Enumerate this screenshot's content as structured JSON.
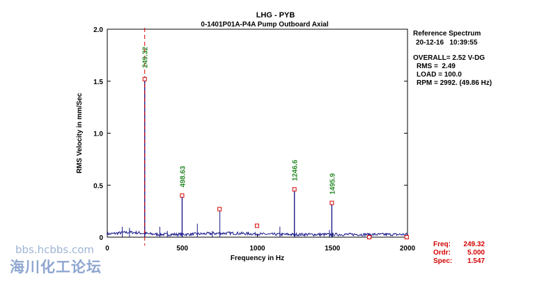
{
  "header": {
    "line1": "LHG  - PYB",
    "line2": "0-1401P01A-P4A   Pump Outboard Axial"
  },
  "info": {
    "title": "Reference Spectrum",
    "datetime": "20-12-16   10:39:55",
    "overall": "OVERALL= 2.52 V-DG",
    "rms": "RMS =  2.49",
    "load": "LOAD = 100.0",
    "rpm": "RPM = 2992. (49.86 Hz)"
  },
  "cursor": {
    "freq_label": "Freq:",
    "freq_value": "249.32",
    "ordr_label": "Ordr:",
    "ordr_value": "5.000",
    "spec_label": "Spec:",
    "spec_value": "1.547"
  },
  "watermark": {
    "url": "bbs.hcbbs.com",
    "name": "海川化工论坛"
  },
  "colors": {
    "spectrum": "#1a1a8c",
    "marker": "#d40000",
    "peak_label": "#2a8a2a",
    "cursor_line": "#d40000"
  },
  "chart_data": {
    "type": "line",
    "xlabel": "Frequency in Hz",
    "ylabel": "RMS Velocity in mm/Sec",
    "xlim": [
      0,
      2000
    ],
    "ylim": [
      0,
      2.0
    ],
    "x_ticks": [
      "0",
      "500",
      "1000",
      "1500",
      "2000"
    ],
    "y_ticks": [
      "0",
      "0.5",
      "1.0",
      "1.5",
      "2.0"
    ],
    "cursor_x": 249.32,
    "peaks": [
      {
        "x": 249.32,
        "y": 1.547,
        "label": "249.32"
      },
      {
        "x": 498.63,
        "y": 0.4,
        "label": "498.63"
      },
      {
        "x": 1246.6,
        "y": 0.46,
        "label": "1246.6"
      },
      {
        "x": 1495.9,
        "y": 0.33,
        "label": "1495.9"
      }
    ],
    "markers": [
      {
        "x": 249.32,
        "y": 1.52
      },
      {
        "x": 498.63,
        "y": 0.4
      },
      {
        "x": 747.95,
        "y": 0.27
      },
      {
        "x": 997.26,
        "y": 0.11
      },
      {
        "x": 1246.6,
        "y": 0.46
      },
      {
        "x": 1495.9,
        "y": 0.33
      },
      {
        "x": 1745.2,
        "y": 0.0
      },
      {
        "x": 1994.5,
        "y": 0.0
      }
    ],
    "minor_lines": [
      {
        "x": 100,
        "y": 0.1
      },
      {
        "x": 148,
        "y": 0.09
      },
      {
        "x": 350,
        "y": 0.1
      },
      {
        "x": 400,
        "y": 0.06
      },
      {
        "x": 600,
        "y": 0.13
      },
      {
        "x": 700,
        "y": 0.06
      },
      {
        "x": 750,
        "y": 0.27
      },
      {
        "x": 1150,
        "y": 0.1
      },
      {
        "x": 1480,
        "y": 0.07
      }
    ]
  }
}
